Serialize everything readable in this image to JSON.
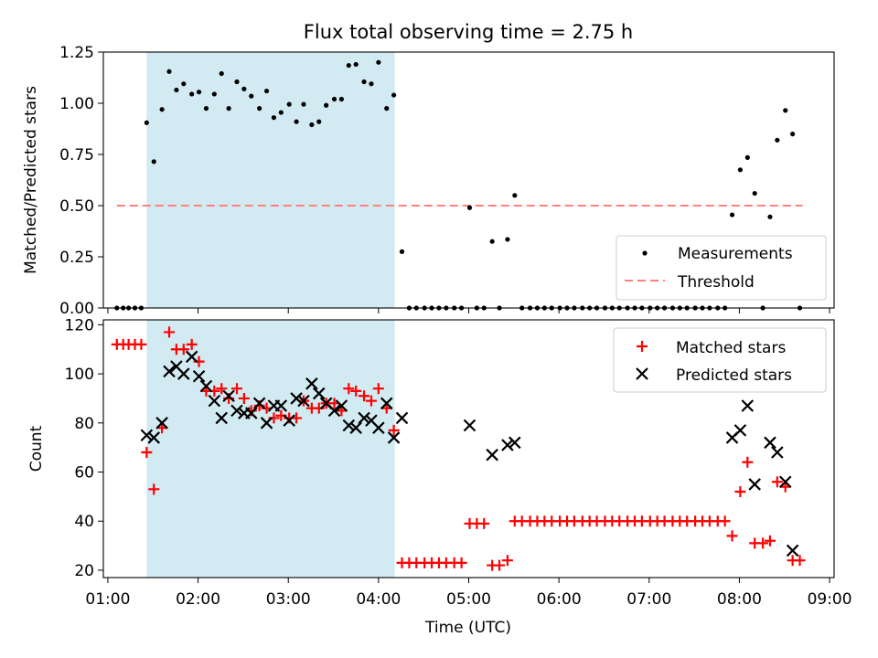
{
  "figure": {
    "title": "Flux total observing time = 2.75 h",
    "xlabel": "Time (UTC)",
    "xticks": [
      "01:00",
      "02:00",
      "03:00",
      "04:00",
      "05:00",
      "06:00",
      "07:00",
      "08:00",
      "09:00"
    ],
    "colors": {
      "shade": "#add8e6",
      "threshold": "#ff7f7f",
      "matched": "#ff0000",
      "predicted": "#000000",
      "measurement": "#000000"
    }
  },
  "chart_data": [
    {
      "type": "scatter",
      "ylabel": "Matched/Predicted stars",
      "xlim_hours": [
        0.95,
        9.05
      ],
      "ylim": [
        0,
        1.25
      ],
      "yticks": [
        "0.00",
        "0.25",
        "0.50",
        "0.75",
        "1.00",
        "1.25"
      ],
      "ytick_values": [
        0,
        0.25,
        0.5,
        0.75,
        1.0,
        1.25
      ],
      "shaded_span_hours": [
        1.43,
        4.18
      ],
      "threshold_line": {
        "label": "Threshold",
        "y": 0.5,
        "x_hours": [
          1.1,
          8.7
        ]
      },
      "legend": {
        "position": "lower right",
        "entries": [
          "Measurements",
          "Threshold"
        ]
      },
      "series": [
        {
          "name": "Measurements",
          "x_hours": [
            1.1,
            1.17,
            1.23,
            1.3,
            1.37,
            1.43,
            1.51,
            1.6,
            1.68,
            1.76,
            1.84,
            1.93,
            2.01,
            2.09,
            2.18,
            2.26,
            2.34,
            2.43,
            2.51,
            2.59,
            2.68,
            2.76,
            2.84,
            2.92,
            3.01,
            3.09,
            3.17,
            3.26,
            3.34,
            3.42,
            3.51,
            3.59,
            3.67,
            3.75,
            3.84,
            3.92,
            4.0,
            4.09,
            4.17,
            4.26,
            4.34,
            4.42,
            4.51,
            4.59,
            4.67,
            4.75,
            4.84,
            4.92,
            5.01,
            5.09,
            5.17,
            5.26,
            5.34,
            5.43,
            5.51,
            5.59,
            5.68,
            5.76,
            5.84,
            5.92,
            6.01,
            6.09,
            6.17,
            6.26,
            6.34,
            6.42,
            6.51,
            6.59,
            6.67,
            6.76,
            6.84,
            6.92,
            7.01,
            7.09,
            7.17,
            7.26,
            7.34,
            7.42,
            7.51,
            7.59,
            7.67,
            7.76,
            7.84,
            7.92,
            8.01,
            8.09,
            8.17,
            8.26,
            8.34,
            8.42,
            8.51,
            8.59,
            8.67
          ],
          "y": [
            0,
            0,
            0,
            0,
            0,
            0.905,
            0.715,
            0.97,
            1.155,
            1.065,
            1.095,
            1.045,
            1.055,
            0.975,
            1.045,
            1.145,
            0.975,
            1.105,
            1.07,
            1.035,
            0.975,
            1.06,
            0.93,
            0.955,
            0.995,
            0.91,
            0.995,
            0.895,
            0.91,
            0.99,
            1.02,
            1.02,
            1.185,
            1.19,
            1.105,
            1.095,
            1.2,
            0.975,
            1.04,
            0.275,
            0,
            0,
            0,
            0,
            0,
            0,
            0,
            0,
            0.49,
            0,
            0,
            0.325,
            0,
            0.335,
            0.55,
            0,
            0,
            0,
            0,
            0,
            0,
            0,
            0,
            0,
            0,
            0,
            0,
            0,
            0,
            0,
            0,
            0,
            0,
            0,
            0,
            0,
            0,
            0,
            0,
            0,
            0,
            0,
            0,
            0.455,
            0.675,
            0.735,
            0.56,
            0,
            0.445,
            0.82,
            0.965,
            0.85,
            0
          ]
        }
      ]
    },
    {
      "type": "scatter",
      "ylabel": "Count",
      "xlim_hours": [
        0.95,
        9.05
      ],
      "ylim": [
        17,
        122
      ],
      "yticks": [
        "20",
        "40",
        "60",
        "80",
        "100",
        "120"
      ],
      "ytick_values": [
        20,
        40,
        60,
        80,
        100,
        120
      ],
      "shaded_span_hours": [
        1.43,
        4.18
      ],
      "legend": {
        "position": "upper right",
        "entries": [
          "Matched stars",
          "Predicted stars"
        ]
      },
      "series": [
        {
          "name": "Matched stars",
          "marker": "+",
          "x_hours": [
            1.1,
            1.17,
            1.23,
            1.3,
            1.37,
            1.43,
            1.51,
            1.6,
            1.68,
            1.76,
            1.84,
            1.93,
            2.01,
            2.09,
            2.18,
            2.26,
            2.34,
            2.43,
            2.51,
            2.59,
            2.68,
            2.76,
            2.84,
            2.92,
            3.01,
            3.09,
            3.17,
            3.26,
            3.34,
            3.42,
            3.51,
            3.59,
            3.67,
            3.75,
            3.84,
            3.92,
            4.0,
            4.09,
            4.17,
            4.26,
            4.34,
            4.42,
            4.51,
            4.59,
            4.67,
            4.75,
            4.84,
            4.92,
            5.01,
            5.09,
            5.17,
            5.26,
            5.34,
            5.43,
            5.51,
            5.59,
            5.68,
            5.76,
            5.84,
            5.92,
            6.01,
            6.09,
            6.17,
            6.26,
            6.34,
            6.42,
            6.51,
            6.59,
            6.67,
            6.76,
            6.84,
            6.92,
            7.01,
            7.09,
            7.17,
            7.26,
            7.34,
            7.42,
            7.51,
            7.59,
            7.67,
            7.76,
            7.84,
            7.92,
            8.01,
            8.09,
            8.17,
            8.26,
            8.34,
            8.42,
            8.51,
            8.59,
            8.67
          ],
          "y": [
            112,
            112,
            112,
            112,
            112,
            68,
            53,
            78,
            117,
            110,
            110,
            112,
            105,
            93,
            93,
            94,
            90,
            94,
            90,
            85,
            87,
            86,
            82,
            83,
            82,
            82,
            89,
            86,
            86,
            88,
            88,
            85,
            94,
            93,
            91,
            89,
            94,
            86,
            77,
            23,
            23,
            23,
            23,
            23,
            23,
            23,
            23,
            23,
            39,
            39,
            39,
            22,
            22,
            24,
            40,
            40,
            40,
            40,
            40,
            40,
            40,
            40,
            40,
            40,
            40,
            40,
            40,
            40,
            40,
            40,
            40,
            40,
            40,
            40,
            40,
            40,
            40,
            40,
            40,
            40,
            40,
            40,
            40,
            34,
            52,
            64,
            31,
            31,
            32,
            56,
            54,
            24,
            24
          ]
        },
        {
          "name": "Predicted stars",
          "marker": "x",
          "x_hours": [
            1.43,
            1.51,
            1.6,
            1.68,
            1.76,
            1.84,
            1.93,
            2.01,
            2.09,
            2.18,
            2.26,
            2.34,
            2.43,
            2.51,
            2.59,
            2.68,
            2.76,
            2.84,
            2.92,
            3.01,
            3.09,
            3.17,
            3.26,
            3.34,
            3.42,
            3.51,
            3.59,
            3.67,
            3.75,
            3.84,
            3.92,
            4.0,
            4.09,
            4.17,
            4.26,
            5.01,
            5.26,
            5.43,
            5.51,
            7.92,
            8.01,
            8.09,
            8.17,
            8.34,
            8.42,
            8.51,
            8.59
          ],
          "y": [
            75,
            74,
            80,
            101,
            103,
            100,
            107,
            99,
            95,
            89,
            82,
            91,
            85,
            84,
            84,
            88,
            80,
            87,
            87,
            81,
            90,
            89,
            96,
            92,
            88,
            85,
            87,
            79,
            78,
            82,
            81,
            78,
            88,
            74,
            82,
            79,
            67,
            71,
            72,
            74,
            77,
            87,
            55,
            72,
            68,
            56,
            28
          ]
        }
      ]
    }
  ]
}
